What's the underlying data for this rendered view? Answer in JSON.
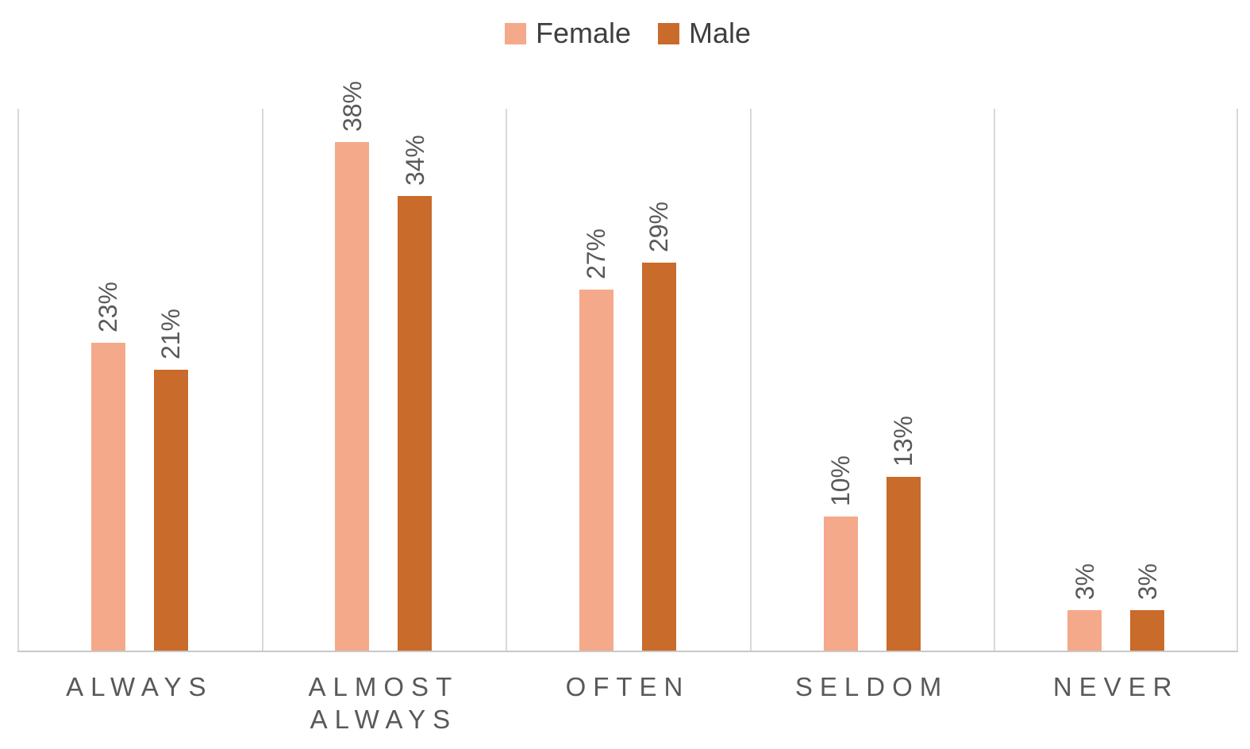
{
  "chart_data": {
    "type": "bar",
    "title": "",
    "categories": [
      "ALWAYS",
      "ALMOST ALWAYS",
      "OFTEN",
      "SELDOM",
      "NEVER"
    ],
    "series": [
      {
        "name": "Female",
        "color": "#F4A98A",
        "values": [
          23,
          38,
          27,
          10,
          3
        ],
        "labels": [
          "23%",
          "38%",
          "27%",
          "10%",
          "3%"
        ]
      },
      {
        "name": "Male",
        "color": "#C96B2B",
        "values": [
          21,
          34,
          29,
          13,
          3
        ],
        "labels": [
          "21%",
          "34%",
          "29%",
          "13%",
          "3%"
        ]
      }
    ],
    "ylim": [
      0,
      40.5
    ],
    "grid": "vertical category separators only",
    "legend_position": "top-center",
    "data_label_style": "rotated 90deg, bottom-to-top, above bars"
  },
  "styles": {
    "background": "#FFFFFF",
    "data_label_color": "#595959",
    "category_label_color": "#595959",
    "legend_text_color": "#3F3F3F",
    "gridline_color": "#D9D9D9",
    "axis_line_color": "#C8C8C8"
  }
}
